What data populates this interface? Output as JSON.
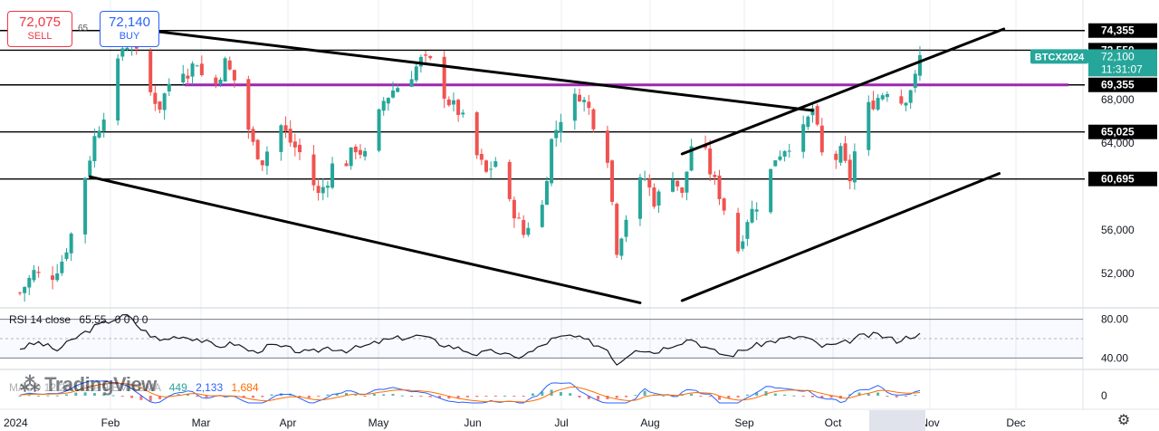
{
  "trade": {
    "sell_price": "72,075",
    "sell_label": "SELL",
    "spread": "65",
    "buy_price": "72,140",
    "buy_label": "BUY"
  },
  "chart_data": {
    "type": "candlestick",
    "price_range": [
      49000,
      76500
    ],
    "price_axis_ticks": [
      {
        "value": 68000,
        "label": "68,000"
      },
      {
        "value": 64000,
        "label": "64,000"
      },
      {
        "value": 56000,
        "label": "56,000"
      },
      {
        "value": 52000,
        "label": "52,000"
      }
    ],
    "price_levels": [
      {
        "value": 74355,
        "label": "74,355",
        "color": "#000000"
      },
      {
        "value": 72550,
        "label": "72,550",
        "color": "#000000"
      },
      {
        "value": 69355,
        "label": "69,355",
        "color": "#000000"
      },
      {
        "value": 65025,
        "label": "65,025",
        "color": "#000000"
      },
      {
        "value": 60695,
        "label": "60,695",
        "color": "#000000"
      }
    ],
    "highlight_level": {
      "value": 69355,
      "color": "#9c27b0"
    },
    "current": {
      "symbol": "BTCX2024",
      "price": "72,100",
      "countdown": "11:31:07",
      "color": "#26a69a"
    },
    "x_axis_labels": [
      "2024",
      "Feb",
      "Mar",
      "Apr",
      "May",
      "Jun",
      "Jul",
      "Aug",
      "Sep",
      "Oct",
      "Nov",
      "Dec"
    ],
    "colors": {
      "up": "#26a69a",
      "down": "#ef5350",
      "grid": "#e9ecf1"
    },
    "close_path": [
      {
        "d": 0,
        "c": 50200
      },
      {
        "d": 3,
        "c": 52100
      },
      {
        "d": 6,
        "c": 51200
      },
      {
        "d": 9,
        "c": 53200
      },
      {
        "d": 12,
        "c": 56800
      },
      {
        "d": 14,
        "c": 61000
      },
      {
        "d": 16,
        "c": 64500
      },
      {
        "d": 18,
        "c": 66800
      },
      {
        "d": 20,
        "c": 69500
      },
      {
        "d": 22,
        "c": 72800
      },
      {
        "d": 24,
        "c": 73400
      },
      {
        "d": 26,
        "c": 70800
      },
      {
        "d": 28,
        "c": 68600
      },
      {
        "d": 30,
        "c": 67400
      },
      {
        "d": 32,
        "c": 69500
      },
      {
        "d": 34,
        "c": 71200
      },
      {
        "d": 36,
        "c": 70600
      },
      {
        "d": 38,
        "c": 71600
      },
      {
        "d": 40,
        "c": 68800
      },
      {
        "d": 42,
        "c": 69500
      },
      {
        "d": 44,
        "c": 71400
      },
      {
        "d": 46,
        "c": 69800
      },
      {
        "d": 48,
        "c": 66800
      },
      {
        "d": 50,
        "c": 63800
      },
      {
        "d": 52,
        "c": 62400
      },
      {
        "d": 54,
        "c": 64200
      },
      {
        "d": 56,
        "c": 65600
      },
      {
        "d": 58,
        "c": 64100
      },
      {
        "d": 60,
        "c": 63100
      },
      {
        "d": 62,
        "c": 61200
      },
      {
        "d": 64,
        "c": 59200
      },
      {
        "d": 66,
        "c": 60700
      },
      {
        "d": 68,
        "c": 63100
      },
      {
        "d": 70,
        "c": 62300
      },
      {
        "d": 72,
        "c": 63600
      },
      {
        "d": 74,
        "c": 62800
      },
      {
        "d": 76,
        "c": 65200
      },
      {
        "d": 78,
        "c": 67900
      },
      {
        "d": 80,
        "c": 68900
      },
      {
        "d": 82,
        "c": 69500
      },
      {
        "d": 84,
        "c": 70400
      },
      {
        "d": 86,
        "c": 71600
      },
      {
        "d": 88,
        "c": 71400
      },
      {
        "d": 90,
        "c": 69400
      },
      {
        "d": 92,
        "c": 67800
      },
      {
        "d": 94,
        "c": 66900
      },
      {
        "d": 96,
        "c": 65400
      },
      {
        "d": 98,
        "c": 62800
      },
      {
        "d": 100,
        "c": 61200
      },
      {
        "d": 102,
        "c": 62400
      },
      {
        "d": 104,
        "c": 58900
      },
      {
        "d": 106,
        "c": 57700
      },
      {
        "d": 108,
        "c": 55600
      },
      {
        "d": 110,
        "c": 57500
      },
      {
        "d": 112,
        "c": 58200
      },
      {
        "d": 114,
        "c": 64200
      },
      {
        "d": 116,
        "c": 66400
      },
      {
        "d": 118,
        "c": 67600
      },
      {
        "d": 120,
        "c": 68500
      },
      {
        "d": 122,
        "c": 67100
      },
      {
        "d": 124,
        "c": 64800
      },
      {
        "d": 126,
        "c": 62800
      },
      {
        "d": 128,
        "c": 54300
      },
      {
        "d": 130,
        "c": 57200
      },
      {
        "d": 132,
        "c": 59800
      },
      {
        "d": 134,
        "c": 60800
      },
      {
        "d": 136,
        "c": 58700
      },
      {
        "d": 138,
        "c": 59600
      },
      {
        "d": 140,
        "c": 61200
      },
      {
        "d": 142,
        "c": 59100
      },
      {
        "d": 144,
        "c": 63800
      },
      {
        "d": 146,
        "c": 64400
      },
      {
        "d": 148,
        "c": 61400
      },
      {
        "d": 150,
        "c": 59300
      },
      {
        "d": 152,
        "c": 56700
      },
      {
        "d": 154,
        "c": 54200
      },
      {
        "d": 156,
        "c": 57100
      },
      {
        "d": 158,
        "c": 58400
      },
      {
        "d": 160,
        "c": 60100
      },
      {
        "d": 162,
        "c": 62700
      },
      {
        "d": 164,
        "c": 63600
      },
      {
        "d": 166,
        "c": 64300
      },
      {
        "d": 168,
        "c": 65100
      },
      {
        "d": 170,
        "c": 67200
      },
      {
        "d": 172,
        "c": 62900
      },
      {
        "d": 174,
        "c": 62100
      },
      {
        "d": 176,
        "c": 63100
      },
      {
        "d": 178,
        "c": 60700
      },
      {
        "d": 180,
        "c": 65600
      },
      {
        "d": 182,
        "c": 67300
      },
      {
        "d": 184,
        "c": 68200
      },
      {
        "d": 186,
        "c": 69000
      },
      {
        "d": 188,
        "c": 67400
      },
      {
        "d": 190,
        "c": 68300
      },
      {
        "d": 192,
        "c": 69900
      },
      {
        "d": 193,
        "c": 72100
      }
    ],
    "trendlines": [
      {
        "d1": 23,
        "v1": 74600,
        "d2": 170,
        "v2": 67000
      },
      {
        "d1": 15,
        "v1": 60900,
        "d2": 133,
        "v2": 49300
      },
      {
        "d1": 142,
        "v1": 63000,
        "d2": 211,
        "v2": 74500
      },
      {
        "d1": 142,
        "v1": 49500,
        "d2": 210,
        "v2": 61200
      }
    ],
    "rsi": {
      "title": "RSI 14 close",
      "value": "65.55",
      "markers": "0 0 0 0",
      "levels": [
        {
          "value": 80,
          "label": "80.00"
        },
        {
          "value": 40,
          "label": "40.00"
        }
      ],
      "range": [
        30,
        90
      ],
      "path": [
        {
          "d": 0,
          "v": 50
        },
        {
          "d": 4,
          "v": 56
        },
        {
          "d": 8,
          "v": 48
        },
        {
          "d": 12,
          "v": 61
        },
        {
          "d": 16,
          "v": 72
        },
        {
          "d": 20,
          "v": 80
        },
        {
          "d": 23,
          "v": 84
        },
        {
          "d": 26,
          "v": 70
        },
        {
          "d": 30,
          "v": 58
        },
        {
          "d": 34,
          "v": 63
        },
        {
          "d": 38,
          "v": 60
        },
        {
          "d": 42,
          "v": 52
        },
        {
          "d": 46,
          "v": 55
        },
        {
          "d": 50,
          "v": 46
        },
        {
          "d": 54,
          "v": 53
        },
        {
          "d": 58,
          "v": 49
        },
        {
          "d": 62,
          "v": 45
        },
        {
          "d": 66,
          "v": 51
        },
        {
          "d": 70,
          "v": 48
        },
        {
          "d": 74,
          "v": 52
        },
        {
          "d": 78,
          "v": 58
        },
        {
          "d": 82,
          "v": 61
        },
        {
          "d": 86,
          "v": 63
        },
        {
          "d": 90,
          "v": 55
        },
        {
          "d": 94,
          "v": 50
        },
        {
          "d": 98,
          "v": 44
        },
        {
          "d": 102,
          "v": 47
        },
        {
          "d": 106,
          "v": 40
        },
        {
          "d": 110,
          "v": 47
        },
        {
          "d": 114,
          "v": 59
        },
        {
          "d": 118,
          "v": 63
        },
        {
          "d": 122,
          "v": 57
        },
        {
          "d": 126,
          "v": 49
        },
        {
          "d": 128,
          "v": 34
        },
        {
          "d": 132,
          "v": 50
        },
        {
          "d": 136,
          "v": 46
        },
        {
          "d": 140,
          "v": 54
        },
        {
          "d": 144,
          "v": 60
        },
        {
          "d": 148,
          "v": 48
        },
        {
          "d": 152,
          "v": 42
        },
        {
          "d": 156,
          "v": 50
        },
        {
          "d": 160,
          "v": 56
        },
        {
          "d": 164,
          "v": 60
        },
        {
          "d": 168,
          "v": 62
        },
        {
          "d": 172,
          "v": 52
        },
        {
          "d": 176,
          "v": 54
        },
        {
          "d": 180,
          "v": 62
        },
        {
          "d": 184,
          "v": 64
        },
        {
          "d": 188,
          "v": 58
        },
        {
          "d": 193,
          "v": 65.55
        }
      ]
    },
    "macd": {
      "title": "MACD 12 26 close 9 EMA EMA",
      "histogram_value": "449",
      "macd_value": "2,133",
      "signal_value": "1,684",
      "zero_label": "0",
      "macd_color": "#2962ff",
      "signal_color": "#ff6d00"
    }
  }
}
